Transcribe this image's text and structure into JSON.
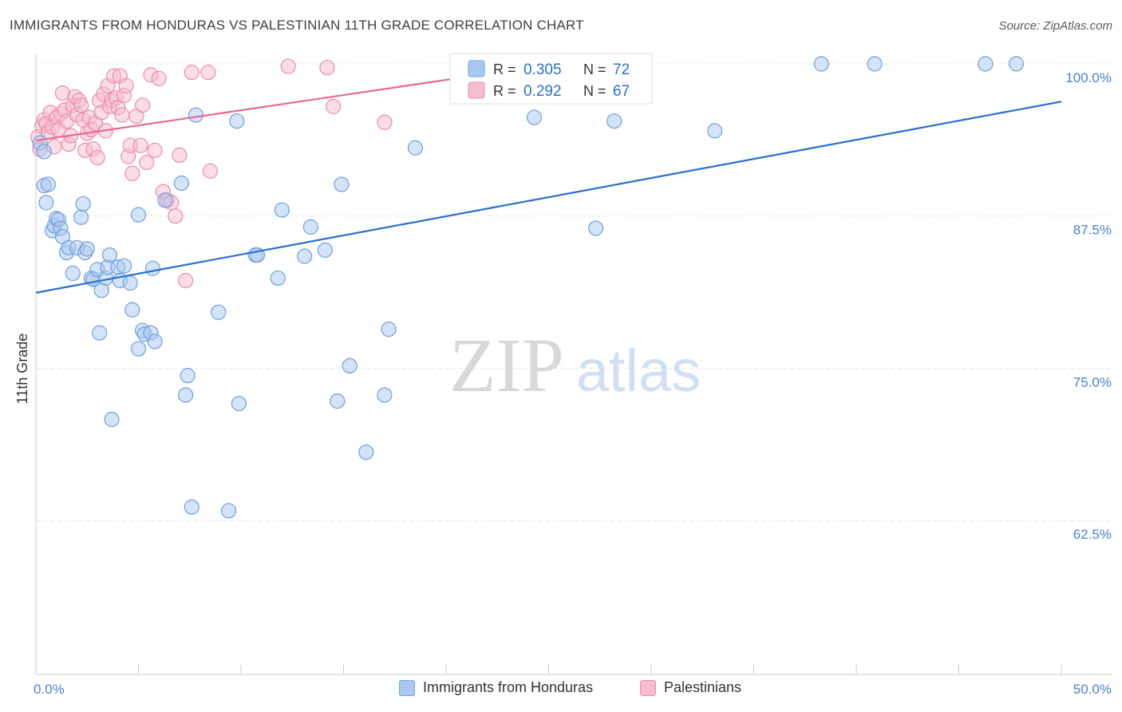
{
  "title": "IMMIGRANTS FROM HONDURAS VS PALESTINIAN 11TH GRADE CORRELATION CHART",
  "source": "Source: ZipAtlas.com",
  "watermark": {
    "zip": "ZIP",
    "atlas": "atlas"
  },
  "colors": {
    "blue_fill": "#a9c8f0",
    "blue_stroke": "#6f9fdc",
    "blue_line": "#2a6fcf",
    "pink_fill": "#f6bcd0",
    "pink_stroke": "#eb8cab",
    "pink_line": "#e8688f",
    "axis_label": "#4a7fd0",
    "grid": "#e6e6e6"
  },
  "legend_box": {
    "rows": [
      {
        "r_label": "R =",
        "r_value": "0.305",
        "n_label": "N =",
        "n_value": "72",
        "series": "blue"
      },
      {
        "r_label": "R =",
        "r_value": "0.292",
        "n_label": "N =",
        "n_value": "67",
        "series": "pink"
      }
    ]
  },
  "legend_bottom": {
    "blue_label": "Immigrants from Honduras",
    "pink_label": "Palestinians"
  },
  "chart_data": {
    "type": "scatter",
    "title": "IMMIGRANTS FROM HONDURAS VS PALESTINIAN 11TH GRADE CORRELATION CHART",
    "xlabel": "",
    "ylabel": "11th Grade",
    "xlim": [
      0,
      50
    ],
    "ylim": [
      50,
      100
    ],
    "x_tick_labels": [
      {
        "value": 0,
        "label": "0.0%"
      },
      {
        "value": 50,
        "label": "50.0%"
      }
    ],
    "y_tick_labels": [
      {
        "value": 100,
        "label": "100.0%"
      },
      {
        "value": 87.5,
        "label": "87.5%"
      },
      {
        "value": 75,
        "label": "75.0%"
      },
      {
        "value": 62.5,
        "label": "62.5%"
      }
    ],
    "series": [
      {
        "name": "Immigrants from Honduras",
        "color": "blue",
        "R": 0.305,
        "N": 72,
        "trend": {
          "x": [
            0,
            50
          ],
          "y": [
            81.2,
            96.9
          ]
        },
        "points": [
          [
            0.2,
            93.5
          ],
          [
            0.4,
            92.8
          ],
          [
            0.4,
            90.0
          ],
          [
            0.6,
            90.1
          ],
          [
            0.5,
            88.6
          ],
          [
            0.8,
            86.3
          ],
          [
            0.9,
            86.7
          ],
          [
            1.0,
            87.3
          ],
          [
            1.1,
            87.2
          ],
          [
            1.2,
            86.5
          ],
          [
            1.3,
            85.8
          ],
          [
            1.5,
            84.5
          ],
          [
            1.6,
            84.9
          ],
          [
            1.8,
            82.8
          ],
          [
            2.0,
            84.9
          ],
          [
            2.2,
            87.4
          ],
          [
            2.3,
            88.5
          ],
          [
            2.4,
            84.5
          ],
          [
            2.5,
            84.8
          ],
          [
            2.7,
            82.4
          ],
          [
            2.8,
            82.3
          ],
          [
            3.0,
            83.1
          ],
          [
            3.2,
            81.4
          ],
          [
            3.4,
            82.4
          ],
          [
            3.5,
            83.3
          ],
          [
            3.6,
            84.3
          ],
          [
            4.0,
            83.3
          ],
          [
            4.1,
            82.2
          ],
          [
            4.3,
            83.4
          ],
          [
            4.6,
            82.0
          ],
          [
            4.7,
            79.8
          ],
          [
            5.0,
            87.6
          ],
          [
            5.2,
            78.1
          ],
          [
            5.3,
            77.8
          ],
          [
            5.6,
            77.9
          ],
          [
            5.7,
            83.2
          ],
          [
            6.3,
            88.8
          ],
          [
            7.1,
            90.2
          ],
          [
            7.3,
            72.8
          ],
          [
            7.4,
            74.4
          ],
          [
            7.6,
            63.6
          ],
          [
            7.8,
            95.8
          ],
          [
            5.0,
            76.6
          ],
          [
            5.8,
            77.2
          ],
          [
            3.1,
            77.9
          ],
          [
            3.7,
            70.8
          ],
          [
            9.8,
            95.3
          ],
          [
            8.9,
            79.6
          ],
          [
            9.4,
            63.3
          ],
          [
            9.9,
            72.1
          ],
          [
            10.7,
            84.3
          ],
          [
            10.8,
            84.3
          ],
          [
            11.8,
            82.4
          ],
          [
            12.0,
            88.0
          ],
          [
            13.1,
            84.2
          ],
          [
            13.4,
            86.6
          ],
          [
            14.1,
            84.7
          ],
          [
            14.7,
            72.3
          ],
          [
            14.9,
            90.1
          ],
          [
            15.3,
            75.2
          ],
          [
            16.1,
            68.1
          ],
          [
            17.0,
            72.8
          ],
          [
            17.2,
            78.2
          ],
          [
            18.5,
            93.1
          ],
          [
            24.3,
            95.6
          ],
          [
            27.3,
            86.5
          ],
          [
            28.2,
            95.3
          ],
          [
            33.1,
            94.5
          ],
          [
            38.3,
            100.0
          ],
          [
            40.9,
            100.0
          ],
          [
            46.3,
            100.0
          ],
          [
            47.8,
            100.0
          ]
        ]
      },
      {
        "name": "Palestinians",
        "color": "pink",
        "R": 0.292,
        "N": 67,
        "trend": {
          "x": [
            0,
            24.9
          ],
          "y": [
            93.7,
            99.9
          ]
        },
        "points": [
          [
            0.1,
            94.0
          ],
          [
            0.2,
            93.0
          ],
          [
            0.3,
            94.9
          ],
          [
            0.4,
            95.4
          ],
          [
            0.5,
            95.1
          ],
          [
            0.6,
            94.4
          ],
          [
            0.7,
            96.0
          ],
          [
            0.8,
            94.8
          ],
          [
            0.9,
            93.2
          ],
          [
            1.0,
            95.6
          ],
          [
            1.1,
            94.6
          ],
          [
            1.2,
            95.9
          ],
          [
            1.3,
            97.6
          ],
          [
            1.4,
            96.2
          ],
          [
            1.5,
            95.3
          ],
          [
            1.6,
            93.4
          ],
          [
            1.7,
            94.1
          ],
          [
            1.8,
            96.6
          ],
          [
            1.9,
            97.3
          ],
          [
            2.0,
            95.8
          ],
          [
            2.1,
            97.0
          ],
          [
            2.2,
            96.6
          ],
          [
            2.3,
            95.4
          ],
          [
            2.4,
            92.9
          ],
          [
            2.5,
            94.3
          ],
          [
            2.6,
            95.6
          ],
          [
            2.7,
            94.6
          ],
          [
            2.8,
            93.0
          ],
          [
            2.9,
            95.1
          ],
          [
            3.0,
            92.3
          ],
          [
            3.1,
            97.0
          ],
          [
            3.2,
            96.0
          ],
          [
            3.3,
            97.5
          ],
          [
            3.4,
            94.5
          ],
          [
            3.5,
            98.2
          ],
          [
            3.6,
            96.5
          ],
          [
            3.7,
            97.0
          ],
          [
            3.8,
            99.0
          ],
          [
            3.9,
            97.2
          ],
          [
            4.0,
            96.4
          ],
          [
            4.1,
            99.0
          ],
          [
            4.2,
            95.8
          ],
          [
            4.3,
            97.4
          ],
          [
            4.4,
            98.2
          ],
          [
            4.5,
            92.4
          ],
          [
            4.6,
            93.3
          ],
          [
            4.7,
            91.0
          ],
          [
            4.9,
            95.7
          ],
          [
            5.1,
            93.3
          ],
          [
            5.2,
            96.6
          ],
          [
            5.4,
            91.9
          ],
          [
            5.6,
            99.1
          ],
          [
            5.8,
            92.9
          ],
          [
            6.0,
            98.8
          ],
          [
            6.2,
            89.5
          ],
          [
            6.4,
            88.8
          ],
          [
            6.6,
            88.6
          ],
          [
            6.8,
            87.5
          ],
          [
            7.0,
            92.5
          ],
          [
            7.3,
            82.2
          ],
          [
            7.6,
            99.3
          ],
          [
            8.4,
            99.3
          ],
          [
            8.5,
            91.2
          ],
          [
            12.3,
            99.8
          ],
          [
            14.5,
            96.5
          ],
          [
            17.0,
            95.2
          ],
          [
            14.2,
            99.7
          ]
        ]
      }
    ]
  }
}
